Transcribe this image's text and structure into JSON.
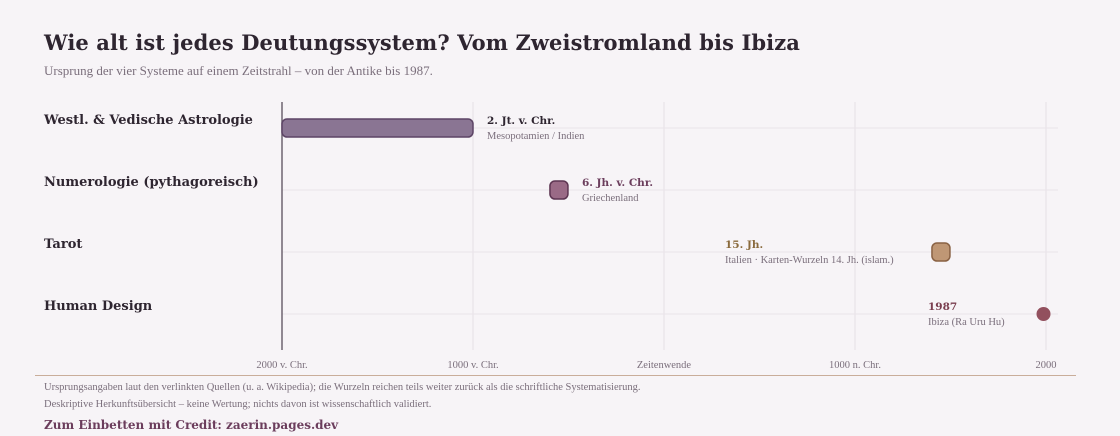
{
  "header": {
    "title": "Wie alt ist jedes Deutungssystem? Vom Zweistromland bis Ibiza",
    "subtitle": "Ursprung der vier Systeme auf einem Zeitstrahl – von der Antike bis 1987."
  },
  "footer": {
    "note_1": "Ursprungsangaben laut den verlinkten Quellen (u. a. Wikipedia); die Wurzeln reichen teils weiter zurück als die schriftliche Systematisierung.",
    "note_2": "Deskriptive Herkunftsübersicht – keine Wertung; nichts davon ist wissenschaftlich validiert.",
    "credit": "Zum Einbetten mit Credit: zaerin.pages.dev"
  },
  "chart_data": {
    "type": "timeline",
    "x_axis": {
      "range": [
        -2000,
        2000
      ],
      "ticks": [
        {
          "value": -2000,
          "label": "2000 v. Chr."
        },
        {
          "value": -1000,
          "label": "1000 v. Chr."
        },
        {
          "value": 0,
          "label": "Zeitenwende"
        },
        {
          "value": 1000,
          "label": "1000 n. Chr."
        },
        {
          "value": 2000,
          "label": "2000"
        }
      ],
      "grid": true
    },
    "systems": [
      {
        "name": "Westl. & Vedische Astrologie",
        "start": -2000,
        "end": -1000,
        "date_label": "2. Jt. v. Chr.",
        "origin": "Mesopotamien / Indien",
        "color": "#8a7593",
        "stroke": "#5d4566",
        "label_color": "#2e2530"
      },
      {
        "name": "Numerologie (pythagoreisch)",
        "start": -550,
        "end": -550,
        "date_label": "6. Jh. v. Chr.",
        "origin": "Griechenland",
        "color": "#9a6a86",
        "stroke": "#5d3552",
        "label_color": "#6b3d5c"
      },
      {
        "name": "Tarot",
        "start": 1450,
        "end": 1450,
        "date_label": "15. Jh.",
        "origin": "Italien · Karten-Wurzeln 14. Jh. (islam.)",
        "color": "#bf9775",
        "stroke": "#8a6244",
        "label_color": "#8a6a3c"
      },
      {
        "name": "Human Design",
        "start": 1987,
        "end": 1987,
        "date_label": "1987",
        "origin": "Ibiza (Ra Uru Hu)",
        "color": "#92505e",
        "stroke": "#92505e",
        "label_color": "#7a3e4f"
      }
    ]
  }
}
